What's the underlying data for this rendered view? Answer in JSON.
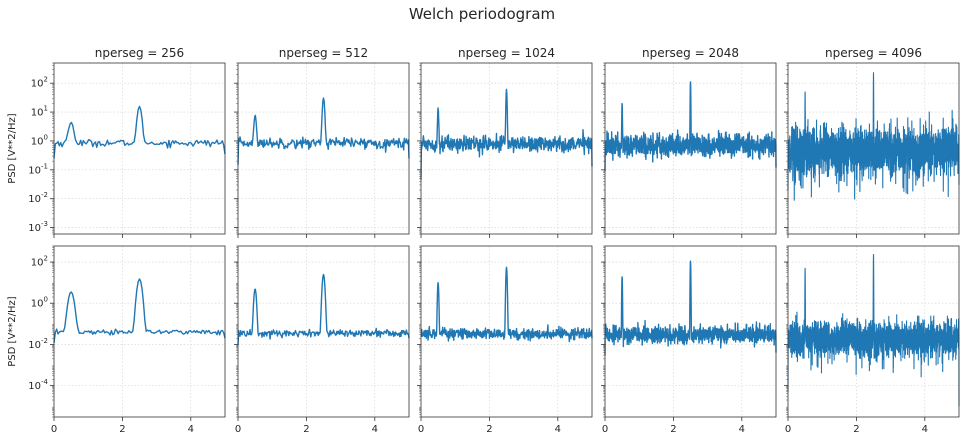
{
  "figure": {
    "title": "Welch periodogram",
    "line_color": "#1f77b4",
    "grid_color": "#d0d0d0",
    "axes_edge_color": "#333333"
  },
  "chart_data": {
    "type": "line",
    "layout": "2x5 grid of line subplots, shared y axis per row, shared x axis",
    "x_range": [
      0,
      5
    ],
    "x_ticks": [
      0,
      2,
      4
    ],
    "x_tick_labels": [
      "0",
      "2",
      "4"
    ],
    "grid": true,
    "rows": [
      {
        "ylabel": "PSD [V**2/Hz]",
        "yscale": "log",
        "ylim": [
          0.0006,
          500
        ],
        "y_ticks": [
          0.001,
          0.01,
          0.1,
          1,
          10,
          100
        ],
        "y_tick_labels": [
          "10^-3",
          "10^-2",
          "10^-1",
          "10^0",
          "10^1",
          "10^2"
        ]
      },
      {
        "ylabel": "PSD [V**2/Hz]",
        "yscale": "log",
        "ylim": [
          3e-06,
          600
        ],
        "y_ticks": [
          0.0001,
          0.01,
          1,
          100
        ],
        "y_tick_labels": [
          "10^-4",
          "10^-2",
          "10^0",
          "10^2"
        ]
      }
    ],
    "columns": [
      {
        "title": "nperseg = 256"
      },
      {
        "title": "nperseg = 512"
      },
      {
        "title": "nperseg = 1024"
      },
      {
        "title": "nperseg = 2048"
      },
      {
        "title": "nperseg = 4096"
      }
    ],
    "panels": [
      {
        "row": 0,
        "col": 0,
        "baseline": 0.85,
        "noise_decades": 0.06,
        "n_points": 129,
        "peaks": [
          {
            "x": 0.5,
            "y": 3.5,
            "width": 0.06
          },
          {
            "x": 2.5,
            "y": 15,
            "width": 0.05
          }
        ],
        "end_points": [
          {
            "x": 0,
            "y": 0.25
          },
          {
            "x": 5,
            "y": 0.35
          }
        ]
      },
      {
        "row": 0,
        "col": 1,
        "baseline": 0.85,
        "noise_decades": 0.09,
        "n_points": 257,
        "peaks": [
          {
            "x": 0.5,
            "y": 7,
            "width": 0.025
          },
          {
            "x": 2.5,
            "y": 30,
            "width": 0.025
          }
        ],
        "end_points": [
          {
            "x": 0,
            "y": 0.15
          },
          {
            "x": 5,
            "y": 0.25
          }
        ]
      },
      {
        "row": 0,
        "col": 2,
        "baseline": 0.8,
        "noise_decades": 0.14,
        "n_points": 513,
        "peaks": [
          {
            "x": 0.5,
            "y": 13,
            "width": 0.012
          },
          {
            "x": 2.5,
            "y": 60,
            "width": 0.012
          }
        ],
        "end_points": [
          {
            "x": 0,
            "y": 0.045
          },
          {
            "x": 5,
            "y": 0.13
          }
        ]
      },
      {
        "row": 0,
        "col": 3,
        "baseline": 0.7,
        "noise_decades": 0.2,
        "n_points": 1025,
        "peaks": [
          {
            "x": 0.5,
            "y": 20,
            "width": 0.006
          },
          {
            "x": 2.5,
            "y": 110,
            "width": 0.006
          }
        ],
        "end_points": [
          {
            "x": 0,
            "y": 0.09
          },
          {
            "x": 5,
            "y": 0.12
          }
        ]
      },
      {
        "row": 0,
        "col": 4,
        "baseline": 0.45,
        "noise_decades": 0.4,
        "n_points": 2049,
        "peaks": [
          {
            "x": 0.5,
            "y": 50,
            "width": 0.003
          },
          {
            "x": 2.5,
            "y": 230,
            "width": 0.003
          }
        ],
        "end_points": [
          {
            "x": 0,
            "y": 0.02
          },
          {
            "x": 5,
            "y": 0.03
          }
        ]
      },
      {
        "row": 1,
        "col": 0,
        "baseline": 0.04,
        "noise_decades": 0.06,
        "n_points": 129,
        "peaks": [
          {
            "x": 0.5,
            "y": 3.5,
            "width": 0.06
          },
          {
            "x": 2.5,
            "y": 15,
            "width": 0.05
          }
        ],
        "end_points": [
          {
            "x": 0,
            "y": 0.012
          },
          {
            "x": 5,
            "y": 0.02
          }
        ]
      },
      {
        "row": 1,
        "col": 1,
        "baseline": 0.035,
        "noise_decades": 0.1,
        "n_points": 257,
        "peaks": [
          {
            "x": 0.5,
            "y": 5,
            "width": 0.025
          },
          {
            "x": 2.5,
            "y": 25,
            "width": 0.025
          }
        ],
        "end_points": [
          {
            "x": 0,
            "y": 0.009
          },
          {
            "x": 5,
            "y": 0.02
          }
        ]
      },
      {
        "row": 1,
        "col": 2,
        "baseline": 0.033,
        "noise_decades": 0.14,
        "n_points": 513,
        "peaks": [
          {
            "x": 0.5,
            "y": 10,
            "width": 0.012
          },
          {
            "x": 2.5,
            "y": 55,
            "width": 0.012
          }
        ],
        "end_points": [
          {
            "x": 0,
            "y": 0.025
          },
          {
            "x": 5,
            "y": 0.02
          }
        ]
      },
      {
        "row": 1,
        "col": 3,
        "baseline": 0.03,
        "noise_decades": 0.2,
        "n_points": 1025,
        "peaks": [
          {
            "x": 0.5,
            "y": 20,
            "width": 0.006
          },
          {
            "x": 2.5,
            "y": 110,
            "width": 0.006
          }
        ],
        "end_points": [
          {
            "x": 0,
            "y": 0.003
          },
          {
            "x": 5,
            "y": 0.004
          }
        ]
      },
      {
        "row": 1,
        "col": 4,
        "baseline": 0.02,
        "noise_decades": 0.4,
        "n_points": 2049,
        "peaks": [
          {
            "x": 0.5,
            "y": 50,
            "width": 0.003
          },
          {
            "x": 2.5,
            "y": 230,
            "width": 0.003
          }
        ],
        "end_points": [
          {
            "x": 0,
            "y": 5e-05
          },
          {
            "x": 5,
            "y": 1e-05
          }
        ]
      }
    ]
  }
}
